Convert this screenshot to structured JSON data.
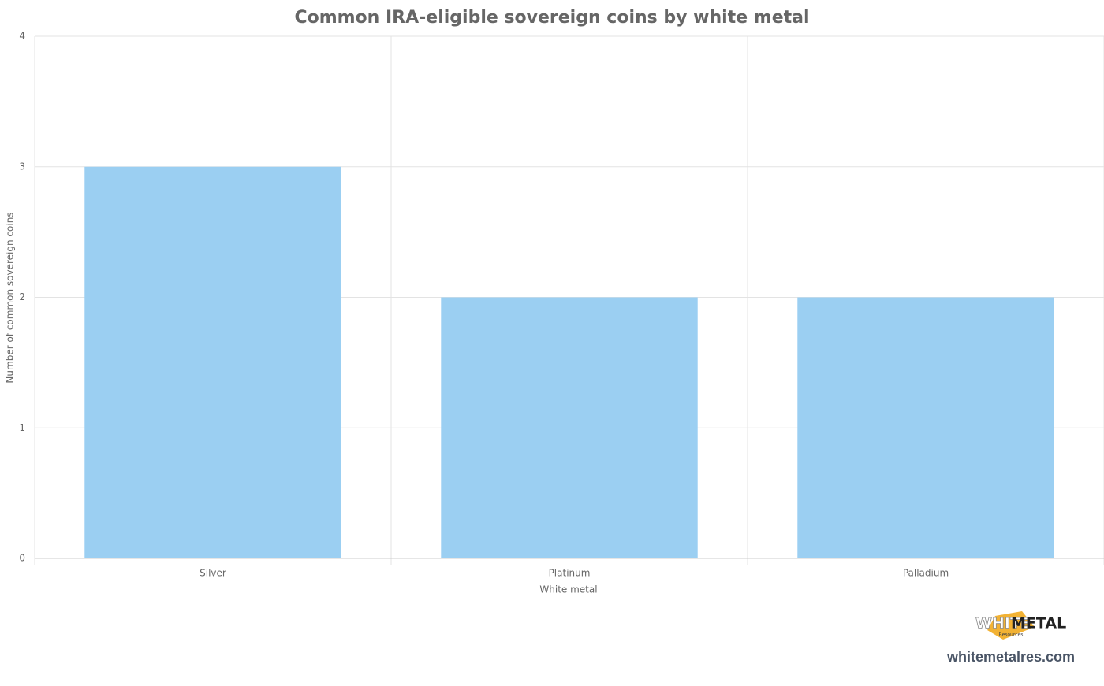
{
  "chart_data": {
    "type": "bar",
    "title": "Common IRA-eligible sovereign coins by white metal",
    "x_label": "White metal",
    "y_label": "Number of common sovereign coins",
    "categories": [
      "Silver",
      "Platinum",
      "Palladium"
    ],
    "values": [
      3,
      2,
      2
    ],
    "color": "#9bcff2",
    "ylim": [
      0,
      4
    ],
    "yticks": [
      0,
      1,
      2,
      3,
      4
    ],
    "grid": true
  },
  "branding": {
    "logo_word1": "WHITE",
    "logo_word2": "METAL",
    "logo_sub": "Resources",
    "url": "whitemetalres.com"
  }
}
